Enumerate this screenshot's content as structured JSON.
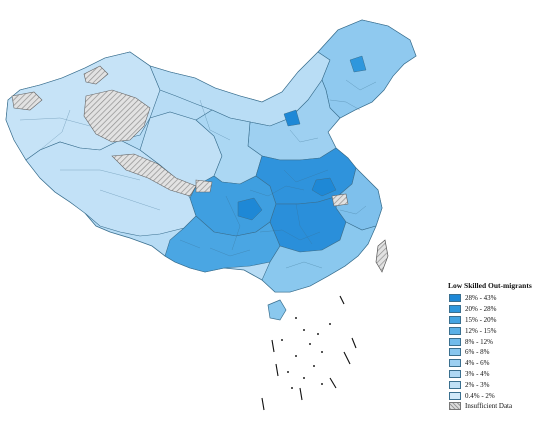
{
  "legend": {
    "title": "Low Skilled Out-migrants",
    "classes": [
      {
        "label": "28% - 43%",
        "color": "#1e88d6"
      },
      {
        "label": "20% - 28%",
        "color": "#2e97dd"
      },
      {
        "label": "15% - 20%",
        "color": "#44a4e2"
      },
      {
        "label": "12% - 15%",
        "color": "#5bb0e6"
      },
      {
        "label": "8% - 12%",
        "color": "#72bbea"
      },
      {
        "label": "6% - 8%",
        "color": "#88c6ee"
      },
      {
        "label": "4% - 6%",
        "color": "#9ccff1"
      },
      {
        "label": "3% - 4%",
        "color": "#afd8f4"
      },
      {
        "label": "2% - 3%",
        "color": "#c0e0f6"
      },
      {
        "label": "0.4% - 2%",
        "color": "#d2e9f9"
      }
    ],
    "no_data": {
      "label": "Insufficient Data",
      "pattern": "hatched-gray"
    }
  },
  "colors": {
    "border": "#3a6f8f",
    "background": "#ffffff"
  }
}
